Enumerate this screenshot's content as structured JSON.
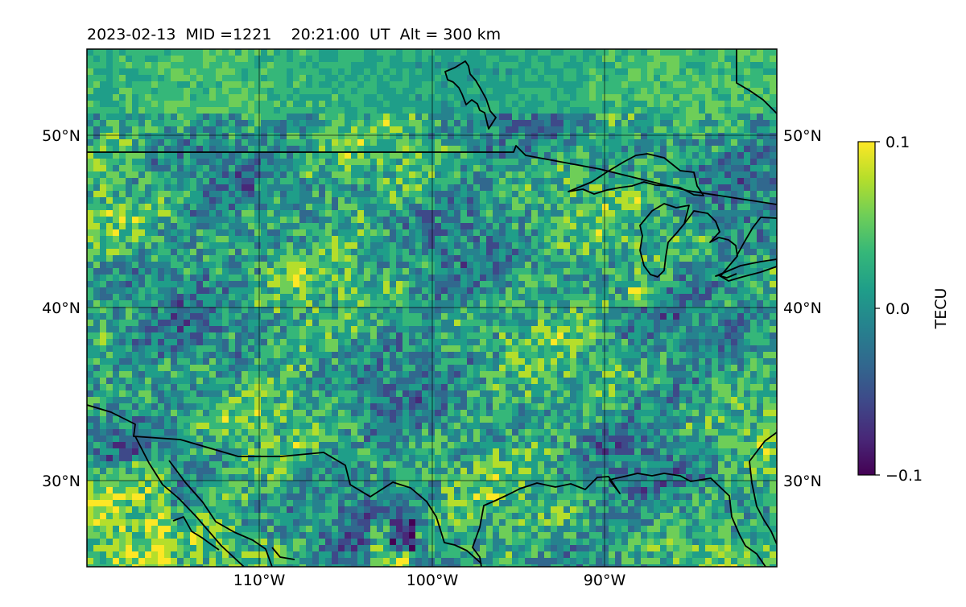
{
  "title": "2023-02-13  MID =1221    20:21:00  UT  Alt = 300 km",
  "map": {
    "lon_range": [
      -120,
      -80
    ],
    "lat_range": [
      25,
      55
    ],
    "colormap": "viridis",
    "gridlines": true,
    "lat_labels": [
      "50°N",
      "40°N",
      "30°N"
    ],
    "lat_values": [
      50,
      40,
      30
    ],
    "lon_labels": [
      "110°W",
      "100°W",
      "90°W"
    ],
    "lon_values": [
      -110,
      -100,
      -90
    ]
  },
  "colorbar": {
    "label": "TECU",
    "min": -0.1,
    "max": 0.1,
    "tick_labels": [
      "0.1",
      "0.0",
      "−0.1"
    ],
    "tick_values": [
      0.1,
      0.0,
      -0.1
    ],
    "colors": [
      "#440154",
      "#482878",
      "#3e4989",
      "#31688e",
      "#26828e",
      "#1f9e89",
      "#35b779",
      "#6ece58",
      "#b5de2b",
      "#fde725"
    ]
  }
}
